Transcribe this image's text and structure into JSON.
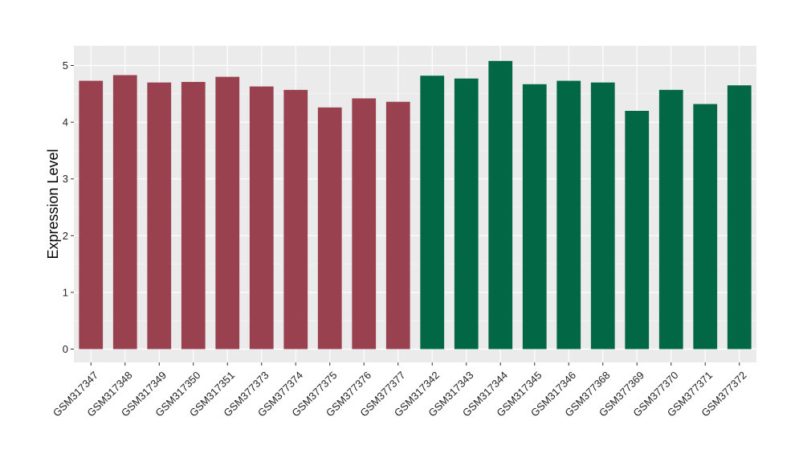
{
  "chart_data": {
    "type": "bar",
    "title": "",
    "xlabel": "",
    "ylabel": "Expression Level",
    "ylim": [
      0,
      5.3
    ],
    "yticks": [
      0,
      1,
      2,
      3,
      4,
      5
    ],
    "grid": true,
    "legend": "none",
    "categories": [
      "GSM317347",
      "GSM317348",
      "GSM317349",
      "GSM317350",
      "GSM317351",
      "GSM377373",
      "GSM377374",
      "GSM377375",
      "GSM377376",
      "GSM377377",
      "GSM317342",
      "GSM317343",
      "GSM317344",
      "GSM317345",
      "GSM317346",
      "GSM377368",
      "GSM377369",
      "GSM377370",
      "GSM377371",
      "GSM377372"
    ],
    "values": [
      4.73,
      4.83,
      4.7,
      4.71,
      4.8,
      4.63,
      4.57,
      4.26,
      4.42,
      4.36,
      4.82,
      4.77,
      5.08,
      4.67,
      4.73,
      4.7,
      4.2,
      4.57,
      4.32,
      4.65
    ],
    "groups": [
      0,
      0,
      0,
      0,
      0,
      0,
      0,
      0,
      0,
      0,
      1,
      1,
      1,
      1,
      1,
      1,
      1,
      1,
      1,
      1
    ],
    "group_colors": [
      "#99414f",
      "#016744"
    ]
  },
  "colors": {
    "panel_background": "#ebebeb",
    "grid_major": "#ffffff",
    "grid_minor": "#f5f5f5",
    "tick": "#333333"
  }
}
